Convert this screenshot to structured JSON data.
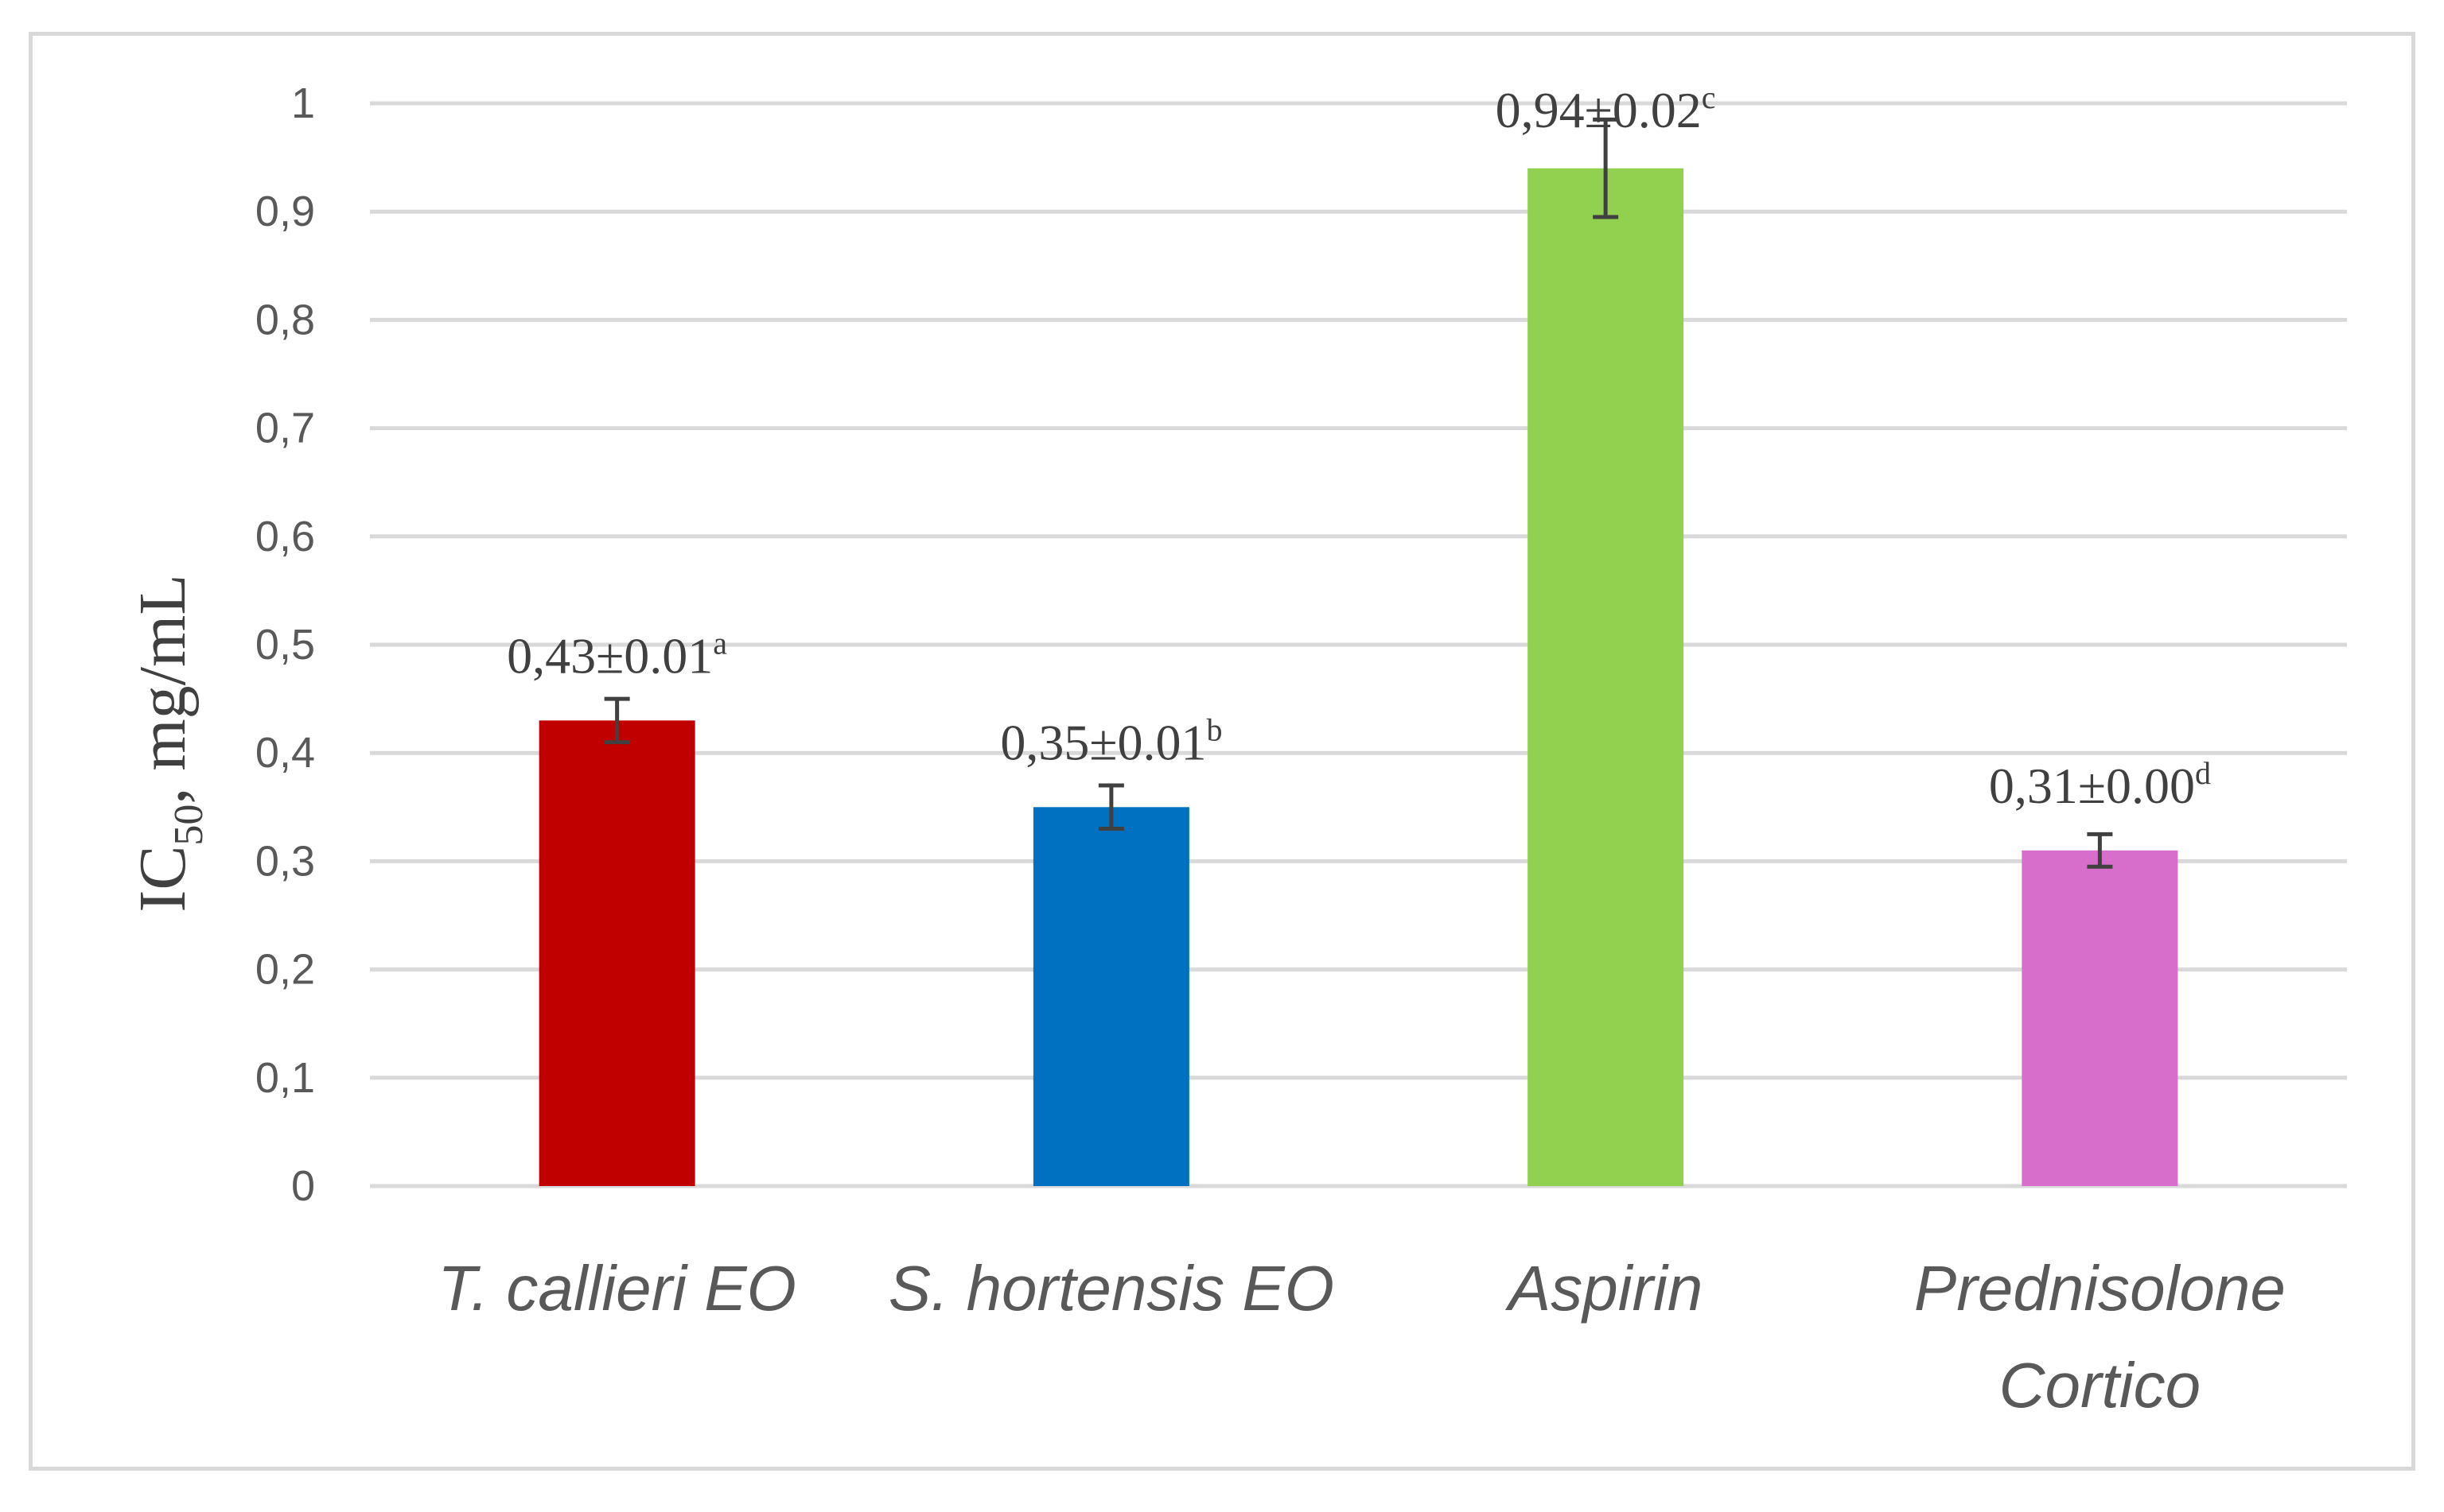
{
  "chart_data": {
    "type": "bar",
    "categories": [
      [
        "T. callieri EO"
      ],
      [
        "S. hortensis EO"
      ],
      [
        "Aspirin"
      ],
      [
        "Prednisolone",
        "Cortico"
      ]
    ],
    "values": [
      0.43,
      0.35,
      0.94,
      0.31
    ],
    "errors": [
      0.02,
      0.02,
      0.045,
      0.015
    ],
    "colors": [
      "#c00000",
      "#0070c0",
      "#92d050",
      "#d86ecc"
    ],
    "data_labels": [
      {
        "value": "0,43",
        "pm": "±",
        "sd": "0.01",
        "letter": "a"
      },
      {
        "value": "0,35",
        "pm": "±",
        "sd": "0.01",
        "letter": "b"
      },
      {
        "value": "0,94",
        "pm": "±",
        "sd": "0.02",
        "letter": "c"
      },
      {
        "value": "0,31",
        "pm": "±",
        "sd": "0.00",
        "letter": "d"
      }
    ],
    "yticks": [
      "0",
      "0,1",
      "0,2",
      "0,3",
      "0,4",
      "0,5",
      "0,6",
      "0,7",
      "0,8",
      "0,9",
      "1"
    ],
    "ylim": [
      0,
      1
    ],
    "ylabel": {
      "main": "IC",
      "sub": "50",
      "rest": ", mg/mL"
    },
    "xlabel": "",
    "grid": true,
    "gridColor": "#d9d9d9",
    "errorBarColor": "#404040"
  }
}
